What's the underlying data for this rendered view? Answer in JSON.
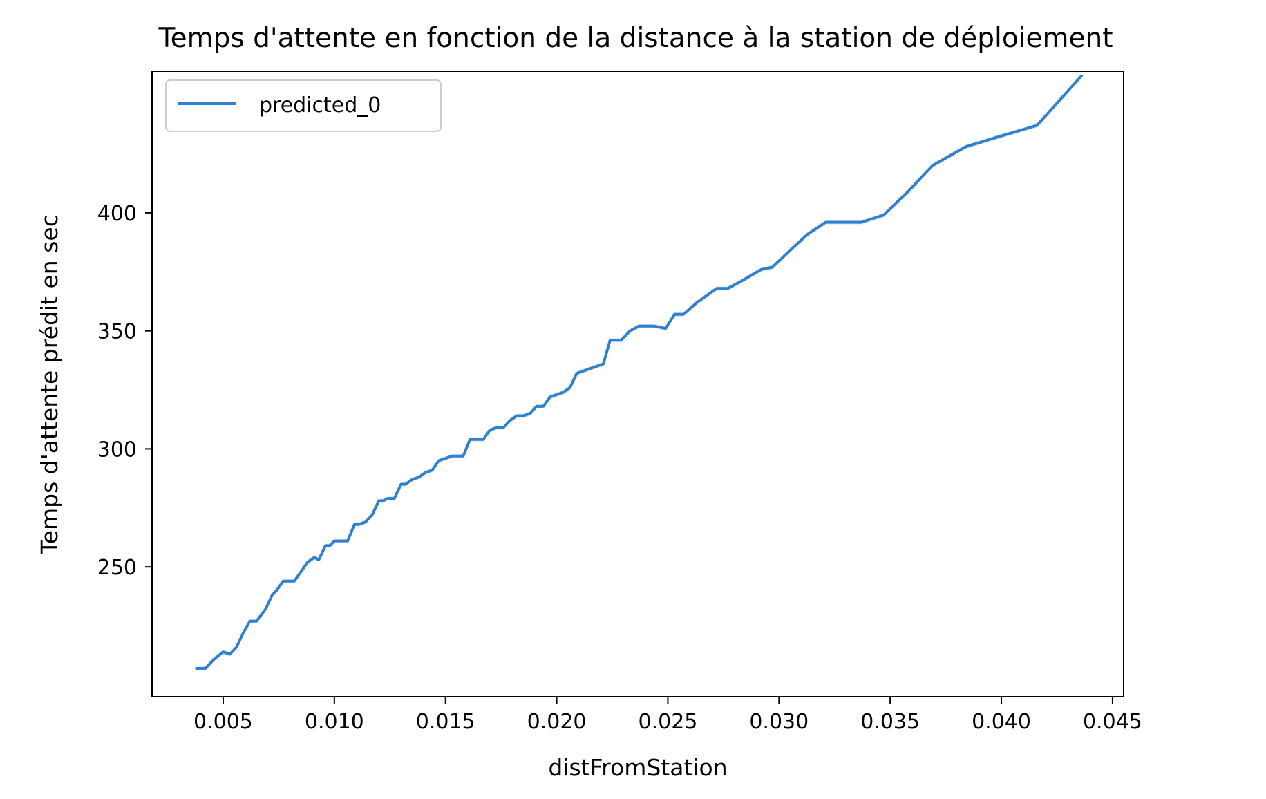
{
  "chart_data": {
    "type": "line",
    "title": "Temps d'attente en fonction de la distance à la station de déploiement",
    "xlabel": "distFromStation",
    "ylabel": "Temps d'attente prédit en sec",
    "xlim": [
      0.0018,
      0.0455
    ],
    "ylim": [
      195,
      460
    ],
    "xticks": [
      0.005,
      0.01,
      0.015,
      0.02,
      0.025,
      0.03,
      0.035,
      0.04,
      0.045
    ],
    "xtick_labels": [
      "0.005",
      "0.010",
      "0.015",
      "0.020",
      "0.025",
      "0.030",
      "0.035",
      "0.040",
      "0.045"
    ],
    "yticks": [
      250,
      300,
      350,
      400
    ],
    "ytick_labels": [
      "250",
      "300",
      "350",
      "400"
    ],
    "grid": false,
    "legend_position": "top-left",
    "series": [
      {
        "name": "predicted_0",
        "color": "#3080d0",
        "x": [
          0.0038,
          0.0042,
          0.0046,
          0.005,
          0.0053,
          0.0056,
          0.0059,
          0.0062,
          0.0065,
          0.0069,
          0.0072,
          0.0074,
          0.0077,
          0.0079,
          0.0082,
          0.0085,
          0.0088,
          0.0091,
          0.0093,
          0.0096,
          0.0098,
          0.01,
          0.0103,
          0.0106,
          0.0109,
          0.0111,
          0.0114,
          0.0117,
          0.012,
          0.0122,
          0.0124,
          0.0127,
          0.013,
          0.0132,
          0.0135,
          0.0138,
          0.0141,
          0.0144,
          0.0147,
          0.015,
          0.0153,
          0.0156,
          0.0158,
          0.0161,
          0.0164,
          0.0167,
          0.017,
          0.0173,
          0.0176,
          0.0179,
          0.0182,
          0.0185,
          0.0188,
          0.0191,
          0.0194,
          0.0197,
          0.02,
          0.0203,
          0.0206,
          0.0209,
          0.0212,
          0.0215,
          0.0218,
          0.0221,
          0.0224,
          0.0229,
          0.0233,
          0.0237,
          0.0241,
          0.0244,
          0.0249,
          0.0253,
          0.0257,
          0.0263,
          0.0272,
          0.0277,
          0.0283,
          0.0292,
          0.0297,
          0.0306,
          0.0313,
          0.0321,
          0.0337,
          0.0347,
          0.0358,
          0.0369,
          0.0384,
          0.0398,
          0.0416,
          0.0436
        ],
        "y": [
          207,
          207,
          211,
          214,
          213,
          216,
          222,
          227,
          227,
          232,
          238,
          240,
          244,
          244,
          244,
          248,
          252,
          254,
          253,
          259,
          259,
          261,
          261,
          261,
          268,
          268,
          269,
          272,
          278,
          278,
          279,
          279,
          285,
          285,
          287,
          288,
          290,
          291,
          295,
          296,
          297,
          297,
          297,
          304,
          304,
          304,
          308,
          309,
          309,
          312,
          314,
          314,
          315,
          318,
          318,
          322,
          323,
          324,
          326,
          332,
          333,
          334,
          335,
          336,
          346,
          346,
          350,
          352,
          352,
          352,
          351,
          357,
          357,
          362,
          368,
          368,
          371,
          376,
          377,
          385,
          391,
          396,
          396,
          399,
          409,
          420,
          428,
          432,
          437,
          458
        ]
      }
    ]
  }
}
